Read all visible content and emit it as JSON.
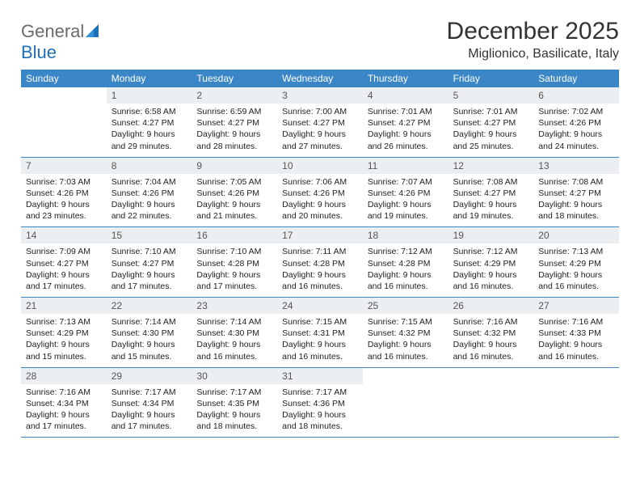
{
  "brand": {
    "part1": "General",
    "part2": "Blue"
  },
  "title": "December 2025",
  "location": "Miglionico, Basilicate, Italy",
  "colors": {
    "header_bg": "#3b86c6",
    "header_text": "#ffffff",
    "daynum_bg": "#eceff1",
    "rule": "#3b86c6",
    "logo_gray": "#6a6a6a",
    "logo_blue": "#1e6fb8"
  },
  "days_of_week": [
    "Sunday",
    "Monday",
    "Tuesday",
    "Wednesday",
    "Thursday",
    "Friday",
    "Saturday"
  ],
  "weeks": [
    [
      {
        "n": "",
        "sunrise": "",
        "sunset": "",
        "daylight": ""
      },
      {
        "n": "1",
        "sunrise": "Sunrise: 6:58 AM",
        "sunset": "Sunset: 4:27 PM",
        "daylight": "Daylight: 9 hours and 29 minutes."
      },
      {
        "n": "2",
        "sunrise": "Sunrise: 6:59 AM",
        "sunset": "Sunset: 4:27 PM",
        "daylight": "Daylight: 9 hours and 28 minutes."
      },
      {
        "n": "3",
        "sunrise": "Sunrise: 7:00 AM",
        "sunset": "Sunset: 4:27 PM",
        "daylight": "Daylight: 9 hours and 27 minutes."
      },
      {
        "n": "4",
        "sunrise": "Sunrise: 7:01 AM",
        "sunset": "Sunset: 4:27 PM",
        "daylight": "Daylight: 9 hours and 26 minutes."
      },
      {
        "n": "5",
        "sunrise": "Sunrise: 7:01 AM",
        "sunset": "Sunset: 4:27 PM",
        "daylight": "Daylight: 9 hours and 25 minutes."
      },
      {
        "n": "6",
        "sunrise": "Sunrise: 7:02 AM",
        "sunset": "Sunset: 4:26 PM",
        "daylight": "Daylight: 9 hours and 24 minutes."
      }
    ],
    [
      {
        "n": "7",
        "sunrise": "Sunrise: 7:03 AM",
        "sunset": "Sunset: 4:26 PM",
        "daylight": "Daylight: 9 hours and 23 minutes."
      },
      {
        "n": "8",
        "sunrise": "Sunrise: 7:04 AM",
        "sunset": "Sunset: 4:26 PM",
        "daylight": "Daylight: 9 hours and 22 minutes."
      },
      {
        "n": "9",
        "sunrise": "Sunrise: 7:05 AM",
        "sunset": "Sunset: 4:26 PM",
        "daylight": "Daylight: 9 hours and 21 minutes."
      },
      {
        "n": "10",
        "sunrise": "Sunrise: 7:06 AM",
        "sunset": "Sunset: 4:26 PM",
        "daylight": "Daylight: 9 hours and 20 minutes."
      },
      {
        "n": "11",
        "sunrise": "Sunrise: 7:07 AM",
        "sunset": "Sunset: 4:26 PM",
        "daylight": "Daylight: 9 hours and 19 minutes."
      },
      {
        "n": "12",
        "sunrise": "Sunrise: 7:08 AM",
        "sunset": "Sunset: 4:27 PM",
        "daylight": "Daylight: 9 hours and 19 minutes."
      },
      {
        "n": "13",
        "sunrise": "Sunrise: 7:08 AM",
        "sunset": "Sunset: 4:27 PM",
        "daylight": "Daylight: 9 hours and 18 minutes."
      }
    ],
    [
      {
        "n": "14",
        "sunrise": "Sunrise: 7:09 AM",
        "sunset": "Sunset: 4:27 PM",
        "daylight": "Daylight: 9 hours and 17 minutes."
      },
      {
        "n": "15",
        "sunrise": "Sunrise: 7:10 AM",
        "sunset": "Sunset: 4:27 PM",
        "daylight": "Daylight: 9 hours and 17 minutes."
      },
      {
        "n": "16",
        "sunrise": "Sunrise: 7:10 AM",
        "sunset": "Sunset: 4:28 PM",
        "daylight": "Daylight: 9 hours and 17 minutes."
      },
      {
        "n": "17",
        "sunrise": "Sunrise: 7:11 AM",
        "sunset": "Sunset: 4:28 PM",
        "daylight": "Daylight: 9 hours and 16 minutes."
      },
      {
        "n": "18",
        "sunrise": "Sunrise: 7:12 AM",
        "sunset": "Sunset: 4:28 PM",
        "daylight": "Daylight: 9 hours and 16 minutes."
      },
      {
        "n": "19",
        "sunrise": "Sunrise: 7:12 AM",
        "sunset": "Sunset: 4:29 PM",
        "daylight": "Daylight: 9 hours and 16 minutes."
      },
      {
        "n": "20",
        "sunrise": "Sunrise: 7:13 AM",
        "sunset": "Sunset: 4:29 PM",
        "daylight": "Daylight: 9 hours and 16 minutes."
      }
    ],
    [
      {
        "n": "21",
        "sunrise": "Sunrise: 7:13 AM",
        "sunset": "Sunset: 4:29 PM",
        "daylight": "Daylight: 9 hours and 15 minutes."
      },
      {
        "n": "22",
        "sunrise": "Sunrise: 7:14 AM",
        "sunset": "Sunset: 4:30 PM",
        "daylight": "Daylight: 9 hours and 15 minutes."
      },
      {
        "n": "23",
        "sunrise": "Sunrise: 7:14 AM",
        "sunset": "Sunset: 4:30 PM",
        "daylight": "Daylight: 9 hours and 16 minutes."
      },
      {
        "n": "24",
        "sunrise": "Sunrise: 7:15 AM",
        "sunset": "Sunset: 4:31 PM",
        "daylight": "Daylight: 9 hours and 16 minutes."
      },
      {
        "n": "25",
        "sunrise": "Sunrise: 7:15 AM",
        "sunset": "Sunset: 4:32 PM",
        "daylight": "Daylight: 9 hours and 16 minutes."
      },
      {
        "n": "26",
        "sunrise": "Sunrise: 7:16 AM",
        "sunset": "Sunset: 4:32 PM",
        "daylight": "Daylight: 9 hours and 16 minutes."
      },
      {
        "n": "27",
        "sunrise": "Sunrise: 7:16 AM",
        "sunset": "Sunset: 4:33 PM",
        "daylight": "Daylight: 9 hours and 16 minutes."
      }
    ],
    [
      {
        "n": "28",
        "sunrise": "Sunrise: 7:16 AM",
        "sunset": "Sunset: 4:34 PM",
        "daylight": "Daylight: 9 hours and 17 minutes."
      },
      {
        "n": "29",
        "sunrise": "Sunrise: 7:17 AM",
        "sunset": "Sunset: 4:34 PM",
        "daylight": "Daylight: 9 hours and 17 minutes."
      },
      {
        "n": "30",
        "sunrise": "Sunrise: 7:17 AM",
        "sunset": "Sunset: 4:35 PM",
        "daylight": "Daylight: 9 hours and 18 minutes."
      },
      {
        "n": "31",
        "sunrise": "Sunrise: 7:17 AM",
        "sunset": "Sunset: 4:36 PM",
        "daylight": "Daylight: 9 hours and 18 minutes."
      },
      {
        "n": "",
        "sunrise": "",
        "sunset": "",
        "daylight": ""
      },
      {
        "n": "",
        "sunrise": "",
        "sunset": "",
        "daylight": ""
      },
      {
        "n": "",
        "sunrise": "",
        "sunset": "",
        "daylight": ""
      }
    ]
  ]
}
